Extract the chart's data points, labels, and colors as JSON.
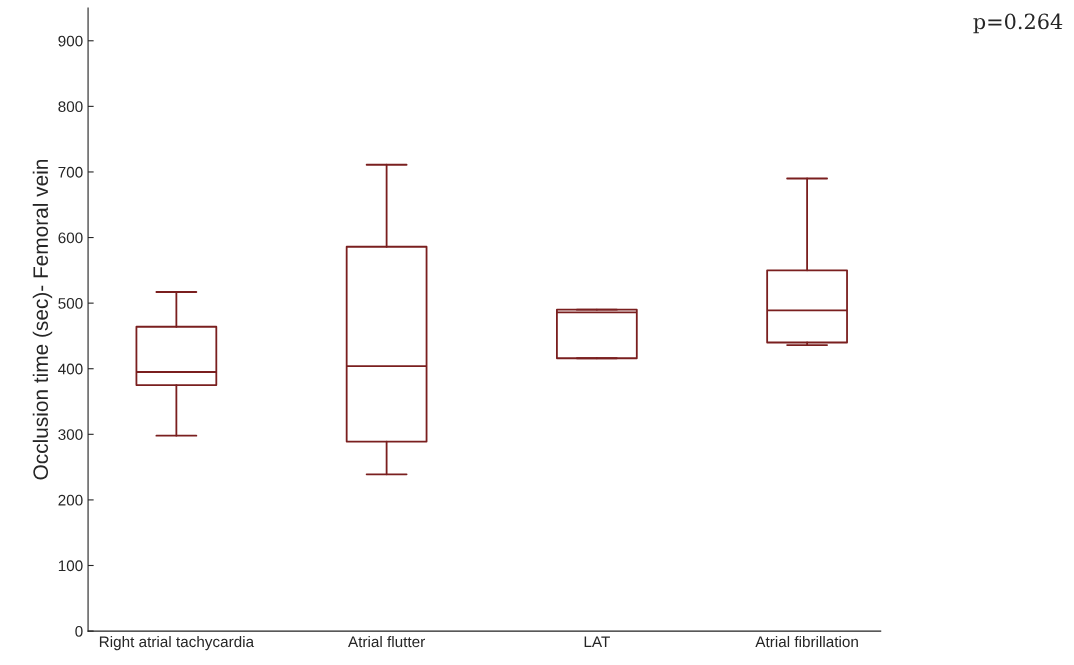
{
  "chart_data": {
    "type": "box",
    "ylabel": "Occlusion time (sec)- Femoral vein",
    "categories": [
      "Right atrial tachycardia",
      "Atrial flutter",
      "LAT",
      "Atrial fibrillation"
    ],
    "boxes": [
      {
        "low": 298,
        "q1": 375,
        "median": 395,
        "q3": 464,
        "high": 517
      },
      {
        "low": 239,
        "q1": 289,
        "median": 404,
        "q3": 586,
        "high": 711
      },
      {
        "low": 416,
        "q1": 416,
        "median": 486,
        "q3": 490,
        "high": 490
      },
      {
        "low": 436,
        "q1": 440,
        "median": 489,
        "q3": 550,
        "high": 690
      }
    ],
    "color": "#7a1f1f",
    "ylim": [
      0,
      950
    ],
    "yticks": [
      0,
      100,
      200,
      300,
      400,
      500,
      600,
      700,
      800,
      900
    ],
    "grid": false,
    "annotations": [
      "p=0.264"
    ]
  }
}
